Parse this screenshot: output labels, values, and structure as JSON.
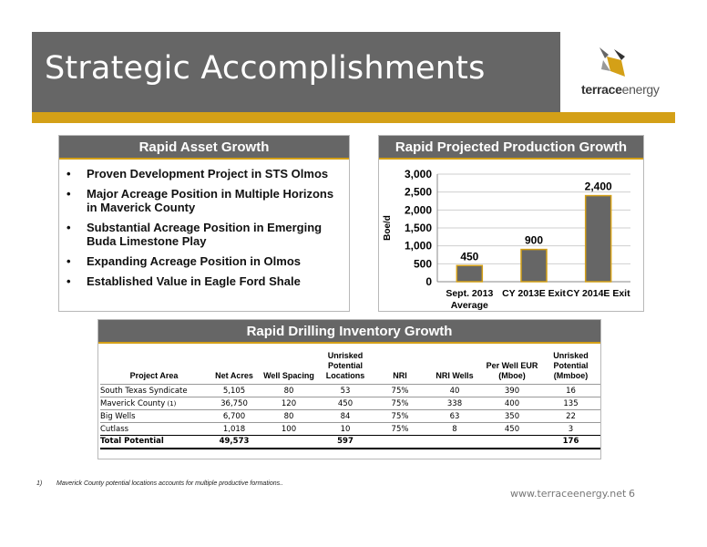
{
  "slide": {
    "title": "Strategic Accomplishments",
    "logo_text_bold": "terrace",
    "logo_text_rest": "energy",
    "url": "www.terraceenergy.net",
    "page_number": "6",
    "footnote_number": "1)",
    "footnote_text": "Maverick County potential locations accounts for multiple productive formations..",
    "colors": {
      "header_gray": "#666666",
      "gold": "#D4A017",
      "bar_fill": "#666666"
    }
  },
  "asset_growth": {
    "heading": "Rapid Asset  Growth",
    "items": [
      "Proven Development Project in STS Olmos",
      "Major Acreage Position in Multiple Horizons in Maverick County",
      "Substantial Acreage Position in Emerging Buda Limestone Play",
      "Expanding Acreage Position in Olmos",
      "Established Value in Eagle Ford Shale"
    ]
  },
  "production_growth": {
    "heading": "Rapid Projected Production Growth"
  },
  "chart_data": {
    "type": "bar",
    "title": "",
    "categories": [
      "Sept. 2013 Average",
      "CY 2013E Exit",
      "CY 2014E Exit"
    ],
    "category_lines": [
      [
        "Sept. 2013",
        "Average"
      ],
      [
        "CY 2013E Exit"
      ],
      [
        "CY 2014E Exit"
      ]
    ],
    "values": [
      450,
      900,
      2400
    ],
    "value_labels": [
      "450",
      "900",
      "2,400"
    ],
    "ylabel": "Boe/d",
    "xlabel": "",
    "ylim": [
      0,
      3000
    ],
    "yticks": [
      0,
      500,
      1000,
      1500,
      2000,
      2500,
      3000
    ],
    "ytick_labels": [
      "0",
      "500",
      "1,000",
      "1,500",
      "2,000",
      "2,500",
      "3,000"
    ],
    "grid": true,
    "bar_color": "#666666",
    "bar_border": "#D4A017"
  },
  "drilling": {
    "heading": "Rapid Drilling Inventory Growth",
    "columns": [
      [
        "Project Area"
      ],
      [
        "Net Acres"
      ],
      [
        "Well Spacing"
      ],
      [
        "Unrisked",
        "Potential",
        "Locations"
      ],
      [
        "NRI"
      ],
      [
        "NRI Wells"
      ],
      [
        "Per Well EUR",
        "(Mboe)"
      ],
      [
        "Unrisked",
        "Potential",
        "(Mmboe)"
      ]
    ],
    "rows": [
      {
        "name": "South Texas Syndicate",
        "ref": "",
        "net_acres": "5,105",
        "spacing": "80",
        "locations": "53",
        "nri": "75%",
        "nri_wells": "40",
        "eur": "390",
        "potential": "16"
      },
      {
        "name": "Maverick County",
        "ref": "(1)",
        "net_acres": "36,750",
        "spacing": "120",
        "locations": "450",
        "nri": "75%",
        "nri_wells": "338",
        "eur": "400",
        "potential": "135"
      },
      {
        "name": "Big Wells",
        "ref": "",
        "net_acres": "6,700",
        "spacing": "80",
        "locations": "84",
        "nri": "75%",
        "nri_wells": "63",
        "eur": "350",
        "potential": "22"
      },
      {
        "name": "Cutlass",
        "ref": "",
        "net_acres": "1,018",
        "spacing": "100",
        "locations": "10",
        "nri": "75%",
        "nri_wells": "8",
        "eur": "450",
        "potential": "3"
      }
    ],
    "total": {
      "name": "Total Potential",
      "net_acres": "49,573",
      "locations": "597",
      "potential": "176"
    }
  }
}
